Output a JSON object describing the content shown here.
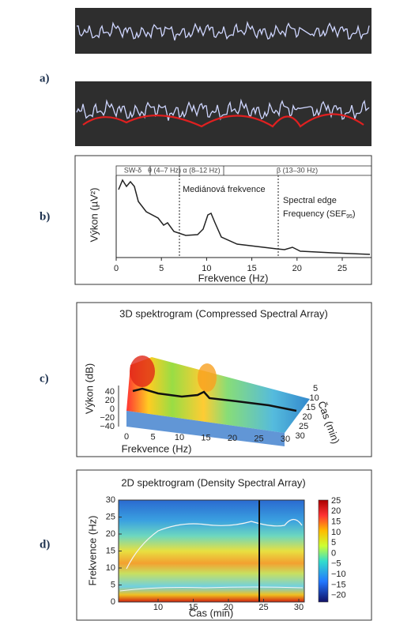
{
  "panel_a": {
    "label": "a)"
  },
  "panel_b": {
    "label": "b)",
    "bands": [
      "SW-δ",
      "θ (4–7 Hz)",
      "α (8–12 Hz)",
      "β (13–30 Hz)"
    ],
    "y_label": "Výkon (µV²)",
    "x_label": "Frekvence (Hz)",
    "x_ticks": [
      "0",
      "5",
      "10",
      "15",
      "20",
      "25"
    ],
    "median_label": "Mediánová frekvence",
    "sef_line1": "Spectral edge",
    "sef_line2": "Frequency (SEF",
    "sef_sub": "95",
    "sef_end": ")"
  },
  "panel_c": {
    "label": "c)",
    "title": "3D spektrogram (Compressed Spectral Array)",
    "z_label": "Výkon (dB)",
    "z_ticks": [
      "40",
      "20",
      "0",
      "−20",
      "−40"
    ],
    "x_label": "Frekvence (Hz)",
    "x_ticks": [
      "0",
      "5",
      "10",
      "15",
      "20",
      "25",
      "30"
    ],
    "t_label": "Čas (min)",
    "t_ticks": [
      "5",
      "10",
      "15",
      "20",
      "25",
      "30"
    ]
  },
  "panel_d": {
    "label": "d)",
    "title": "2D spektrogram (Density Spectral Array)",
    "y_label": "Frekvence (Hz)",
    "y_ticks": [
      "0",
      "5",
      "10",
      "15",
      "20",
      "25",
      "30"
    ],
    "x_label": "Čas (min)",
    "x_ticks": [
      "10",
      "15",
      "20",
      "25",
      "30"
    ],
    "colorbar_ticks": [
      "25",
      "20",
      "15",
      "10",
      "5",
      "0",
      "−5",
      "−10",
      "−15",
      "−20"
    ]
  }
}
